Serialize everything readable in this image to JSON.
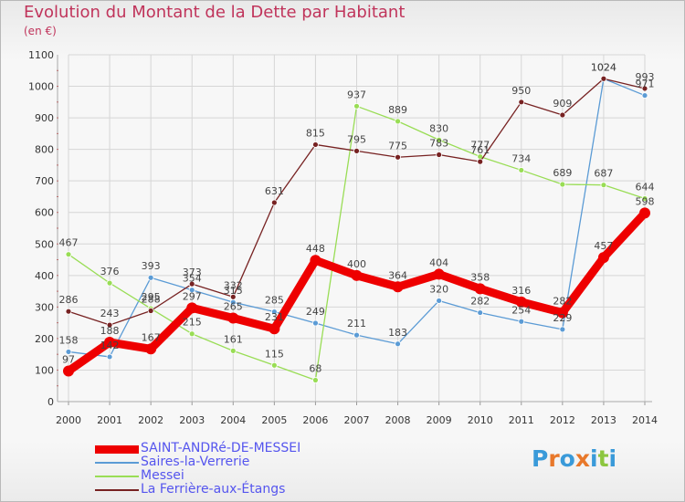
{
  "chart_data": {
    "type": "line",
    "title": "Evolution du Montant de la Dette par Habitant",
    "subtitle": "(en €)",
    "x": [
      2000,
      2001,
      2002,
      2003,
      2004,
      2005,
      2006,
      2007,
      2008,
      2009,
      2010,
      2011,
      2012,
      2013,
      2014
    ],
    "ylim": [
      0,
      1100
    ],
    "yticks": [
      0,
      100,
      200,
      300,
      400,
      500,
      600,
      700,
      800,
      900,
      1000,
      1100
    ],
    "grid": true,
    "legend_position": "bottom-left",
    "series": [
      {
        "name": "SAINT-ANDRé-DE-MESSEI",
        "color": "#ee0000",
        "values": [
          97,
          188,
          167,
          297,
          265,
          231,
          448,
          400,
          364,
          404,
          358,
          316,
          282,
          457,
          598
        ]
      },
      {
        "name": "Saires-la-Verrerie",
        "color": "#5b9bd5",
        "values": [
          158,
          142,
          393,
          354,
          315,
          285,
          249,
          211,
          183,
          320,
          282,
          254,
          229,
          1024,
          971
        ]
      },
      {
        "name": "Messei",
        "color": "#99dd55",
        "values": [
          467,
          376,
          295,
          215,
          161,
          115,
          68,
          937,
          889,
          830,
          777,
          734,
          689,
          687,
          644
        ]
      },
      {
        "name": "La Ferrière-aux-Étangs",
        "color": "#772222",
        "values": [
          286,
          243,
          288,
          373,
          332,
          631,
          815,
          795,
          775,
          783,
          761,
          950,
          909,
          1024,
          993
        ]
      }
    ]
  },
  "logo": {
    "text": "Proxiti",
    "letters": [
      "P",
      "r",
      "o",
      "x",
      "i",
      "t",
      "i"
    ],
    "colors": [
      "#3a9ad9",
      "#e8782a",
      "#3a9ad9",
      "#e8782a",
      "#3a9ad9",
      "#8cc63f",
      "#3a9ad9"
    ]
  }
}
